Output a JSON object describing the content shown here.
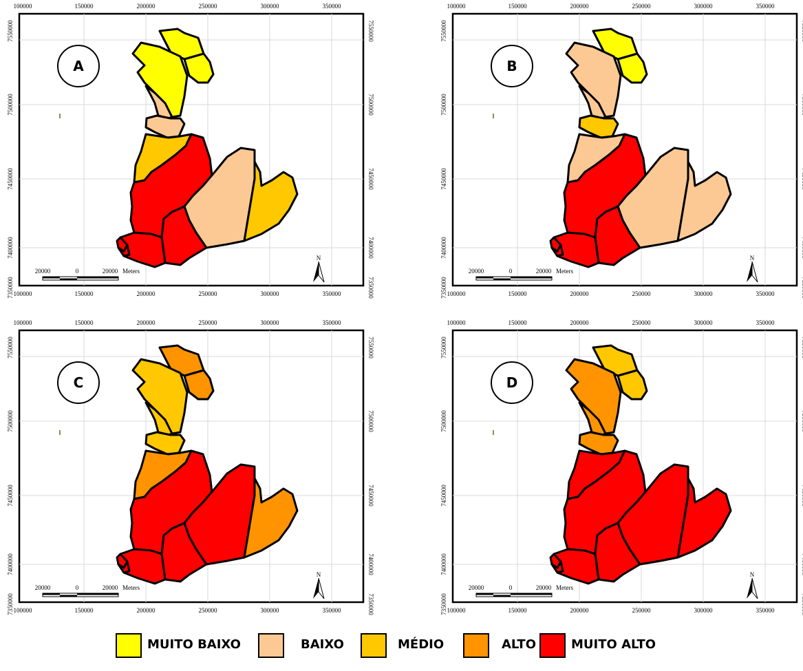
{
  "legend": {
    "items": [
      {
        "label": "MUITO BAIXO",
        "color": "#ffff00"
      },
      {
        "label": "BAIXO",
        "color": "#fcc994"
      },
      {
        "label": "MÉDIO",
        "color": "#ffc800"
      },
      {
        "label": "ALTO",
        "color": "#ff9400"
      },
      {
        "label": "MUITO ALTO",
        "color": "#ff0000"
      }
    ]
  },
  "axes": {
    "x_ticks": [
      "100000",
      "150000",
      "200000",
      "250000",
      "300000",
      "350000"
    ],
    "y_ticks": [
      "7550000",
      "7500000",
      "7450000",
      "7400000",
      "7350000"
    ],
    "x_bottom_first": "100000"
  },
  "scale_bar": {
    "labels": [
      "20000",
      "0",
      "20000"
    ],
    "unit": "Meters"
  },
  "north_arrow": {
    "label": "N",
    "icon": "north-arrow-icon"
  },
  "region_ids": [
    "r1",
    "r2",
    "r3",
    "r4",
    "r5",
    "r6",
    "r7",
    "r8",
    "r9",
    "r10",
    "r11",
    "r12",
    "r13"
  ],
  "panels": [
    {
      "letter": "A",
      "classes": {
        "r1": "MUITO BAIXO",
        "r2": "MUITO BAIXO",
        "r3": "MUITO BAIXO",
        "r4": "BAIXO",
        "r5": "BAIXO",
        "r6": "MÉDIO",
        "r7": "MUITO ALTO",
        "r8": "BAIXO",
        "r9": "MÉDIO",
        "r10": "MUITO ALTO",
        "r11": "MUITO ALTO",
        "r12": "MUITO ALTO",
        "r13": "MUITO ALTO"
      }
    },
    {
      "letter": "B",
      "classes": {
        "r1": "MUITO BAIXO",
        "r2": "MUITO BAIXO",
        "r3": "BAIXO",
        "r4": "BAIXO",
        "r5": "MÉDIO",
        "r6": "BAIXO",
        "r7": "MUITO ALTO",
        "r8": "BAIXO",
        "r9": "BAIXO",
        "r10": "MUITO ALTO",
        "r11": "MUITO ALTO",
        "r12": "MUITO ALTO",
        "r13": "MUITO ALTO"
      }
    },
    {
      "letter": "C",
      "classes": {
        "r1": "ALTO",
        "r2": "ALTO",
        "r3": "MÉDIO",
        "r4": "MÉDIO",
        "r5": "MÉDIO",
        "r6": "ALTO",
        "r7": "MUITO ALTO",
        "r8": "MUITO ALTO",
        "r9": "ALTO",
        "r10": "MUITO ALTO",
        "r11": "MUITO ALTO",
        "r12": "MUITO ALTO",
        "r13": "MUITO ALTO"
      }
    },
    {
      "letter": "D",
      "classes": {
        "r1": "MÉDIO",
        "r2": "MÉDIO",
        "r3": "ALTO",
        "r4": "ALTO",
        "r5": "ALTO",
        "r6": "MUITO ALTO",
        "r7": "MUITO ALTO",
        "r8": "MUITO ALTO",
        "r9": "MUITO ALTO",
        "r10": "MUITO ALTO",
        "r11": "MUITO ALTO",
        "r12": "MUITO ALTO",
        "r13": "MUITO ALTO"
      }
    }
  ]
}
